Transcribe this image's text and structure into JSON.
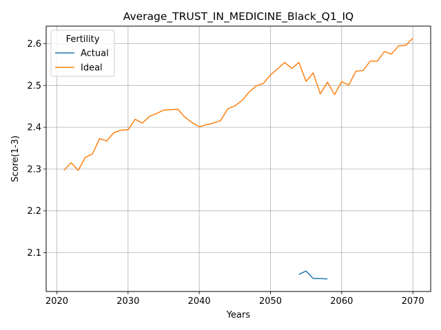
{
  "chart_data": {
    "type": "line",
    "title": "Average_TRUST_IN_MEDICINE_Black_Q1_IQ",
    "xlabel": "Years",
    "ylabel": "Score(1-3)",
    "xlim": [
      2018.5,
      2072.5
    ],
    "ylim": [
      2.007,
      2.642
    ],
    "xticks": [
      2020,
      2030,
      2040,
      2050,
      2060,
      2070
    ],
    "yticks": [
      2.1,
      2.2,
      2.3,
      2.4,
      2.5,
      2.6
    ],
    "grid": true,
    "legend": {
      "title": "Fertility",
      "placement": "top-left"
    },
    "series": [
      {
        "name": "Actual",
        "color": "#1f77b4",
        "x": [
          2054,
          2055,
          2056,
          2057,
          2058
        ],
        "y": [
          2.048,
          2.056,
          2.038,
          2.038,
          2.037
        ]
      },
      {
        "name": "Ideal",
        "color": "#ff7f0e",
        "x": [
          2021,
          2022,
          2023,
          2024,
          2025,
          2026,
          2027,
          2028,
          2029,
          2030,
          2031,
          2032,
          2033,
          2034,
          2035,
          2036,
          2037,
          2038,
          2039,
          2040,
          2041,
          2042,
          2043,
          2044,
          2045,
          2046,
          2047,
          2048,
          2049,
          2050,
          2051,
          2052,
          2053,
          2054,
          2055,
          2056,
          2057,
          2058,
          2059,
          2060,
          2061,
          2062,
          2063,
          2064,
          2065,
          2066,
          2067,
          2068,
          2069,
          2070
        ],
        "y": [
          2.297,
          2.315,
          2.297,
          2.328,
          2.336,
          2.373,
          2.367,
          2.387,
          2.393,
          2.394,
          2.419,
          2.41,
          2.426,
          2.433,
          2.441,
          2.442,
          2.443,
          2.424,
          2.411,
          2.401,
          2.406,
          2.41,
          2.416,
          2.444,
          2.451,
          2.464,
          2.484,
          2.499,
          2.505,
          2.525,
          2.54,
          2.555,
          2.541,
          2.555,
          2.51,
          2.53,
          2.48,
          2.508,
          2.478,
          2.509,
          2.501,
          2.534,
          2.536,
          2.558,
          2.558,
          2.581,
          2.575,
          2.595,
          2.596,
          2.613
        ]
      }
    ]
  }
}
